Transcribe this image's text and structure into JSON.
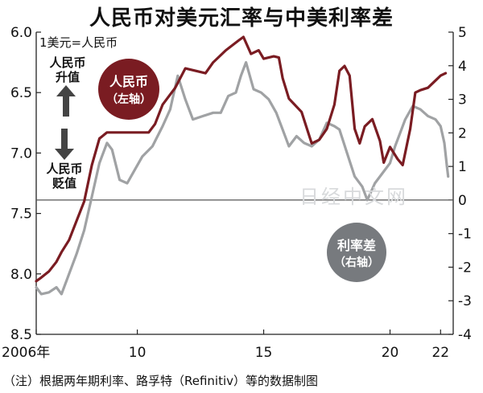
{
  "title": "人民币对美元汇率与中美利率差",
  "footnote": "（注）根据两年期利率、路孚特（Refinitiv）等的数据制图",
  "unit_note": "1美元=人民币",
  "annotations": {
    "up_label_1": "人民币",
    "up_label_2": "升值",
    "down_label_1": "人民币",
    "down_label_2": "贬值"
  },
  "badges": {
    "rmb_1": "人民币",
    "rmb_2": "（左轴）",
    "spread_1": "利率差",
    "spread_2": "（右轴）"
  },
  "watermark": "日经中文网",
  "colors": {
    "rmb": "#7a1c22",
    "spread": "#a0a2a4",
    "badge_rmb": "#7a1c22",
    "badge_spread": "#777a7e",
    "axis": "#222222",
    "arrow": "#444444"
  },
  "chart_data": {
    "type": "line",
    "title": "人民币对美元汇率与中美利率差",
    "x_ticks": [
      {
        "value": 2006,
        "label": "2006年"
      },
      {
        "value": 2010,
        "label": "10"
      },
      {
        "value": 2015,
        "label": "15"
      },
      {
        "value": 2020,
        "label": "20"
      },
      {
        "value": 2022,
        "label": "22"
      }
    ],
    "xlim": [
      2006,
      2022.5
    ],
    "y_left": {
      "lim": [
        8.5,
        6.0
      ],
      "inverted": true,
      "ticks": [
        "6.0",
        "6.5",
        "7.0",
        "7.5",
        "8.0",
        "8.5"
      ]
    },
    "y_right": {
      "lim": [
        -4,
        5
      ],
      "ticks": [
        "5",
        "4",
        "3",
        "2",
        "1",
        "0",
        "-1",
        "-2",
        "-3",
        "-4"
      ]
    },
    "zero_line_right": 0,
    "series": [
      {
        "name": "人民币",
        "axis": "left",
        "points": [
          [
            2006.0,
            8.06
          ],
          [
            2006.2,
            8.03
          ],
          [
            2006.5,
            7.98
          ],
          [
            2006.8,
            7.9
          ],
          [
            2007.0,
            7.82
          ],
          [
            2007.3,
            7.72
          ],
          [
            2007.6,
            7.56
          ],
          [
            2007.9,
            7.4
          ],
          [
            2008.2,
            7.1
          ],
          [
            2008.5,
            6.88
          ],
          [
            2008.8,
            6.83
          ],
          [
            2009.0,
            6.83
          ],
          [
            2009.5,
            6.83
          ],
          [
            2010.0,
            6.83
          ],
          [
            2010.45,
            6.83
          ],
          [
            2010.7,
            6.76
          ],
          [
            2011.0,
            6.6
          ],
          [
            2011.5,
            6.46
          ],
          [
            2011.9,
            6.3
          ],
          [
            2012.3,
            6.32
          ],
          [
            2012.7,
            6.34
          ],
          [
            2013.0,
            6.25
          ],
          [
            2013.5,
            6.15
          ],
          [
            2014.0,
            6.07
          ],
          [
            2014.2,
            6.04
          ],
          [
            2014.5,
            6.18
          ],
          [
            2014.8,
            6.15
          ],
          [
            2015.0,
            6.22
          ],
          [
            2015.4,
            6.2
          ],
          [
            2015.6,
            6.21
          ],
          [
            2015.75,
            6.38
          ],
          [
            2016.0,
            6.55
          ],
          [
            2016.5,
            6.66
          ],
          [
            2016.9,
            6.92
          ],
          [
            2017.2,
            6.89
          ],
          [
            2017.5,
            6.8
          ],
          [
            2017.8,
            6.6
          ],
          [
            2018.0,
            6.32
          ],
          [
            2018.2,
            6.28
          ],
          [
            2018.4,
            6.36
          ],
          [
            2018.6,
            6.8
          ],
          [
            2018.8,
            6.92
          ],
          [
            2019.0,
            6.78
          ],
          [
            2019.3,
            6.72
          ],
          [
            2019.6,
            6.9
          ],
          [
            2019.75,
            7.08
          ],
          [
            2020.0,
            6.95
          ],
          [
            2020.3,
            7.05
          ],
          [
            2020.5,
            7.1
          ],
          [
            2020.8,
            6.8
          ],
          [
            2021.0,
            6.5
          ],
          [
            2021.2,
            6.48
          ],
          [
            2021.5,
            6.46
          ],
          [
            2021.8,
            6.4
          ],
          [
            2022.0,
            6.36
          ],
          [
            2022.2,
            6.34
          ]
        ]
      },
      {
        "name": "利率差",
        "axis": "right",
        "points": [
          [
            2006.0,
            -2.6
          ],
          [
            2006.2,
            -2.8
          ],
          [
            2006.5,
            -2.75
          ],
          [
            2006.8,
            -2.6
          ],
          [
            2007.0,
            -2.8
          ],
          [
            2007.3,
            -2.2
          ],
          [
            2007.6,
            -1.6
          ],
          [
            2007.9,
            -0.9
          ],
          [
            2008.2,
            0.1
          ],
          [
            2008.5,
            1.1
          ],
          [
            2008.8,
            1.7
          ],
          [
            2009.0,
            1.5
          ],
          [
            2009.3,
            0.6
          ],
          [
            2009.6,
            0.5
          ],
          [
            2009.9,
            0.9
          ],
          [
            2010.2,
            1.3
          ],
          [
            2010.6,
            1.6
          ],
          [
            2011.0,
            2.2
          ],
          [
            2011.3,
            2.7
          ],
          [
            2011.6,
            3.7
          ],
          [
            2011.9,
            3.0
          ],
          [
            2012.2,
            2.4
          ],
          [
            2012.6,
            2.5
          ],
          [
            2013.0,
            2.6
          ],
          [
            2013.3,
            2.6
          ],
          [
            2013.6,
            3.1
          ],
          [
            2013.9,
            3.2
          ],
          [
            2014.1,
            3.7
          ],
          [
            2014.3,
            4.1
          ],
          [
            2014.6,
            3.3
          ],
          [
            2014.9,
            3.2
          ],
          [
            2015.2,
            3.0
          ],
          [
            2015.5,
            2.6
          ],
          [
            2015.75,
            2.1
          ],
          [
            2016.0,
            1.6
          ],
          [
            2016.3,
            1.9
          ],
          [
            2016.6,
            1.7
          ],
          [
            2016.9,
            1.6
          ],
          [
            2017.2,
            1.8
          ],
          [
            2017.5,
            2.3
          ],
          [
            2017.8,
            2.2
          ],
          [
            2018.0,
            2.1
          ],
          [
            2018.3,
            1.4
          ],
          [
            2018.6,
            0.7
          ],
          [
            2018.9,
            0.4
          ],
          [
            2019.1,
            0.0
          ],
          [
            2019.4,
            0.5
          ],
          [
            2019.7,
            0.8
          ],
          [
            2020.0,
            1.1
          ],
          [
            2020.2,
            1.6
          ],
          [
            2020.4,
            2.0
          ],
          [
            2020.6,
            2.4
          ],
          [
            2020.9,
            2.8
          ],
          [
            2021.2,
            2.7
          ],
          [
            2021.5,
            2.5
          ],
          [
            2021.8,
            2.4
          ],
          [
            2022.0,
            2.2
          ],
          [
            2022.15,
            1.7
          ],
          [
            2022.25,
            1.0
          ],
          [
            2022.3,
            0.7
          ]
        ]
      }
    ]
  }
}
